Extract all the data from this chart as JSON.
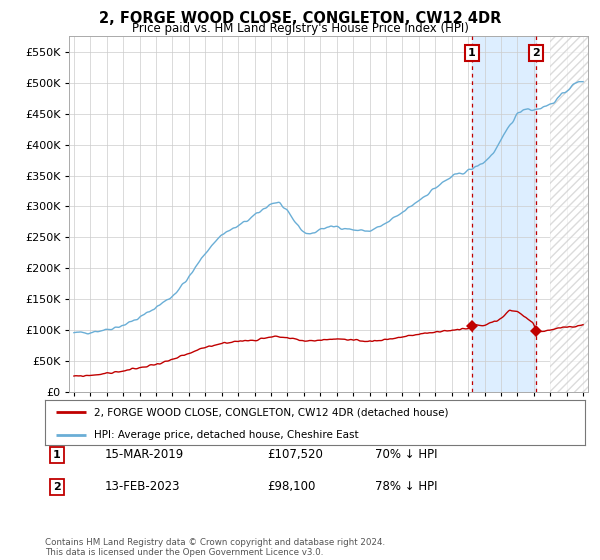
{
  "title": "2, FORGE WOOD CLOSE, CONGLETON, CW12 4DR",
  "subtitle": "Price paid vs. HM Land Registry's House Price Index (HPI)",
  "ylim": [
    0,
    575000
  ],
  "yticks": [
    0,
    50000,
    100000,
    150000,
    200000,
    250000,
    300000,
    350000,
    400000,
    450000,
    500000,
    550000
  ],
  "hpi_color": "#6aaed6",
  "price_color": "#c00000",
  "background_color": "#ffffff",
  "grid_color": "#cccccc",
  "shade_color": "#ddeeff",
  "t1_x": 2019.21,
  "t1_y": 107520,
  "t1_date_str": "15-MAR-2019",
  "t1_price_str": "£107,520",
  "t1_pct": "70% ↓ HPI",
  "t2_x": 2023.12,
  "t2_y": 98100,
  "t2_date_str": "13-FEB-2023",
  "t2_price_str": "£98,100",
  "t2_pct": "78% ↓ HPI",
  "legend_line1": "2, FORGE WOOD CLOSE, CONGLETON, CW12 4DR (detached house)",
  "legend_line2": "HPI: Average price, detached house, Cheshire East",
  "footer": "Contains HM Land Registry data © Crown copyright and database right 2024.\nThis data is licensed under the Open Government Licence v3.0.",
  "xmin": 1995,
  "xmax": 2026.3,
  "hatch_start": 2024.0
}
